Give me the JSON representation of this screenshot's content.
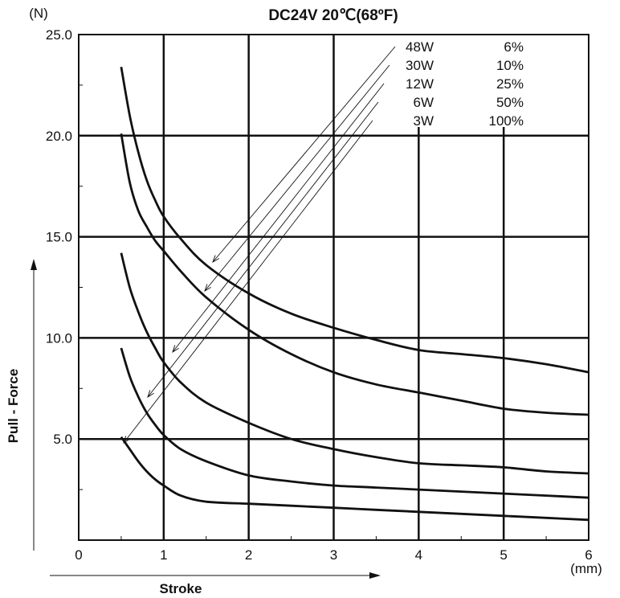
{
  "chart_data": {
    "type": "line",
    "title": "DC24V  20℃(68ºF)",
    "xlabel": "Stroke",
    "ylabel": "Pull - Force",
    "x_unit": "(mm)",
    "y_unit": "(N)",
    "xlim": [
      0,
      6
    ],
    "ylim": [
      0,
      25
    ],
    "x_ticks": [
      "0",
      "1",
      "2",
      "3",
      "4",
      "5",
      "6"
    ],
    "y_ticks": [
      "5.0",
      "10.0",
      "15.0",
      "20.0",
      "25.0"
    ],
    "grid": true,
    "legend_placement": "top-right",
    "series": [
      {
        "name": "48W",
        "duty": "6%",
        "x": [
          0.5,
          0.6,
          0.7,
          0.8,
          0.9,
          1.0,
          1.2,
          1.5,
          2.0,
          2.5,
          3.0,
          3.5,
          4.0,
          4.5,
          5.0,
          5.5,
          6.0
        ],
        "y": [
          23.4,
          21.0,
          19.2,
          17.8,
          16.8,
          16.0,
          14.9,
          13.6,
          12.2,
          11.2,
          10.5,
          9.9,
          9.4,
          9.2,
          9.0,
          8.7,
          8.3
        ]
      },
      {
        "name": "30W",
        "duty": "10%",
        "x": [
          0.5,
          0.6,
          0.7,
          0.8,
          0.9,
          1.0,
          1.2,
          1.5,
          2.0,
          2.5,
          3.0,
          3.5,
          4.0,
          4.5,
          5.0,
          5.5,
          6.0
        ],
        "y": [
          20.1,
          17.7,
          16.3,
          15.5,
          14.8,
          14.3,
          13.3,
          12.0,
          10.4,
          9.2,
          8.3,
          7.7,
          7.3,
          6.9,
          6.5,
          6.3,
          6.2
        ]
      },
      {
        "name": "12W",
        "duty": "25%",
        "x": [
          0.5,
          0.6,
          0.7,
          0.8,
          0.9,
          1.0,
          1.2,
          1.5,
          2.0,
          2.5,
          3.0,
          3.5,
          4.0,
          4.5,
          5.0,
          5.5,
          6.0
        ],
        "y": [
          14.2,
          12.5,
          11.3,
          10.3,
          9.5,
          8.8,
          7.8,
          6.8,
          5.8,
          5.0,
          4.5,
          4.1,
          3.8,
          3.7,
          3.6,
          3.4,
          3.3
        ]
      },
      {
        "name": "6W",
        "duty": "50%",
        "x": [
          0.5,
          0.6,
          0.7,
          0.8,
          0.9,
          1.0,
          1.2,
          1.5,
          2.0,
          2.5,
          3.0,
          3.5,
          4.0,
          4.5,
          5.0,
          5.5,
          6.0
        ],
        "y": [
          9.5,
          8.1,
          7.1,
          6.3,
          5.7,
          5.2,
          4.5,
          3.9,
          3.2,
          2.9,
          2.7,
          2.6,
          2.5,
          2.4,
          2.3,
          2.2,
          2.1
        ]
      },
      {
        "name": "3W",
        "duty": "100%",
        "x": [
          0.5,
          0.6,
          0.7,
          0.8,
          0.9,
          1.0,
          1.2,
          1.5,
          2.0,
          2.5,
          3.0,
          3.5,
          4.0,
          4.5,
          5.0,
          5.5,
          6.0
        ],
        "y": [
          5.1,
          4.5,
          3.9,
          3.4,
          3.0,
          2.7,
          2.2,
          1.9,
          1.8,
          1.7,
          1.6,
          1.5,
          1.4,
          1.3,
          1.2,
          1.1,
          1.0
        ]
      }
    ]
  }
}
